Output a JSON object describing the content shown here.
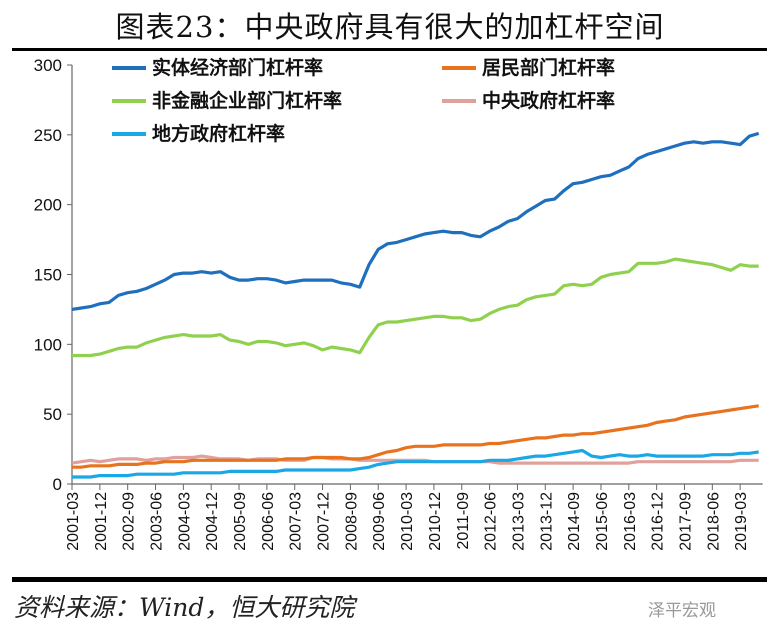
{
  "title": "图表23：中央政府具有很大的加杠杆空间",
  "source": "资料来源：Wind，恒大研究院",
  "watermark": "泽平宏观",
  "chart_data": {
    "type": "line",
    "title": "",
    "xlabel": "",
    "ylabel": "",
    "ylim": [
      0,
      300
    ],
    "yticks": [
      0,
      50,
      100,
      150,
      200,
      250,
      300
    ],
    "xtick_labels": [
      "2001-03",
      "2001-12",
      "2002-09",
      "2003-06",
      "2004-03",
      "2004-12",
      "2005-09",
      "2006-06",
      "2007-03",
      "2007-12",
      "2008-09",
      "2009-06",
      "2010-03",
      "2010-12",
      "2011-09",
      "2012-06",
      "2013-03",
      "2013-12",
      "2014-09",
      "2015-06",
      "2016-03",
      "2016-12",
      "2017-09",
      "2018-06",
      "2019-03"
    ],
    "x_start": "2001-03",
    "x_end": "2019-09",
    "x_frequency": "quarterly",
    "grid": false,
    "legend_position": "top-left",
    "series": [
      {
        "name": "实体经济部门杠杆率",
        "color": "#1f6fbf",
        "values": [
          125,
          126,
          127,
          129,
          130,
          135,
          137,
          138,
          140,
          143,
          146,
          150,
          151,
          151,
          152,
          151,
          152,
          148,
          146,
          146,
          147,
          147,
          146,
          144,
          145,
          146,
          146,
          146,
          146,
          144,
          143,
          141,
          157,
          168,
          172,
          173,
          175,
          177,
          179,
          180,
          181,
          180,
          180,
          178,
          177,
          181,
          184,
          188,
          190,
          195,
          199,
          203,
          204,
          210,
          215,
          216,
          218,
          220,
          221,
          224,
          227,
          233,
          236,
          238,
          240,
          242,
          244,
          245,
          244,
          245,
          245,
          244,
          243,
          249,
          251
        ]
      },
      {
        "name": "居民部门杠杆率",
        "color": "#e8731f",
        "values": [
          12,
          12,
          13,
          13,
          13,
          14,
          14,
          14,
          15,
          15,
          16,
          16,
          16,
          17,
          17,
          17,
          17,
          17,
          17,
          17,
          17,
          17,
          17,
          18,
          18,
          18,
          19,
          19,
          19,
          19,
          18,
          18,
          19,
          21,
          23,
          24,
          26,
          27,
          27,
          27,
          28,
          28,
          28,
          28,
          28,
          29,
          29,
          30,
          31,
          32,
          33,
          33,
          34,
          35,
          35,
          36,
          36,
          37,
          38,
          39,
          40,
          41,
          42,
          44,
          45,
          46,
          48,
          49,
          50,
          51,
          52,
          53,
          54,
          55,
          56
        ]
      },
      {
        "name": "非金融企业部门杠杆率",
        "color": "#8fd14f",
        "values": [
          92,
          92,
          92,
          93,
          95,
          97,
          98,
          98,
          101,
          103,
          105,
          106,
          107,
          106,
          106,
          106,
          107,
          103,
          102,
          100,
          102,
          102,
          101,
          99,
          100,
          101,
          99,
          96,
          98,
          97,
          96,
          94,
          105,
          114,
          116,
          116,
          117,
          118,
          119,
          120,
          120,
          119,
          119,
          117,
          118,
          122,
          125,
          127,
          128,
          132,
          134,
          135,
          136,
          142,
          143,
          142,
          143,
          148,
          150,
          151,
          152,
          158,
          158,
          158,
          159,
          161,
          160,
          159,
          158,
          157,
          155,
          153,
          157,
          156,
          156
        ]
      },
      {
        "name": "中央政府杠杆率",
        "color": "#e0a09c",
        "values": [
          15,
          16,
          17,
          16,
          17,
          18,
          18,
          18,
          17,
          18,
          18,
          19,
          19,
          19,
          20,
          19,
          18,
          18,
          18,
          17,
          18,
          18,
          18,
          17,
          17,
          17,
          19,
          19,
          18,
          18,
          18,
          17,
          17,
          17,
          17,
          17,
          17,
          17,
          17,
          16,
          16,
          16,
          16,
          16,
          16,
          16,
          15,
          15,
          15,
          15,
          15,
          15,
          15,
          15,
          15,
          15,
          15,
          15,
          15,
          15,
          15,
          16,
          16,
          16,
          16,
          16,
          16,
          16,
          16,
          16,
          16,
          16,
          17,
          17,
          17
        ]
      },
      {
        "name": "地方政府杠杆率",
        "color": "#1aa7e6",
        "values": [
          5,
          5,
          5,
          6,
          6,
          6,
          6,
          7,
          7,
          7,
          7,
          7,
          8,
          8,
          8,
          8,
          8,
          9,
          9,
          9,
          9,
          9,
          9,
          10,
          10,
          10,
          10,
          10,
          10,
          10,
          10,
          11,
          12,
          14,
          15,
          16,
          16,
          16,
          16,
          16,
          16,
          16,
          16,
          16,
          16,
          17,
          17,
          17,
          18,
          19,
          20,
          20,
          21,
          22,
          23,
          24,
          20,
          19,
          20,
          21,
          20,
          20,
          21,
          20,
          20,
          20,
          20,
          20,
          20,
          21,
          21,
          21,
          22,
          22,
          23
        ]
      }
    ]
  }
}
